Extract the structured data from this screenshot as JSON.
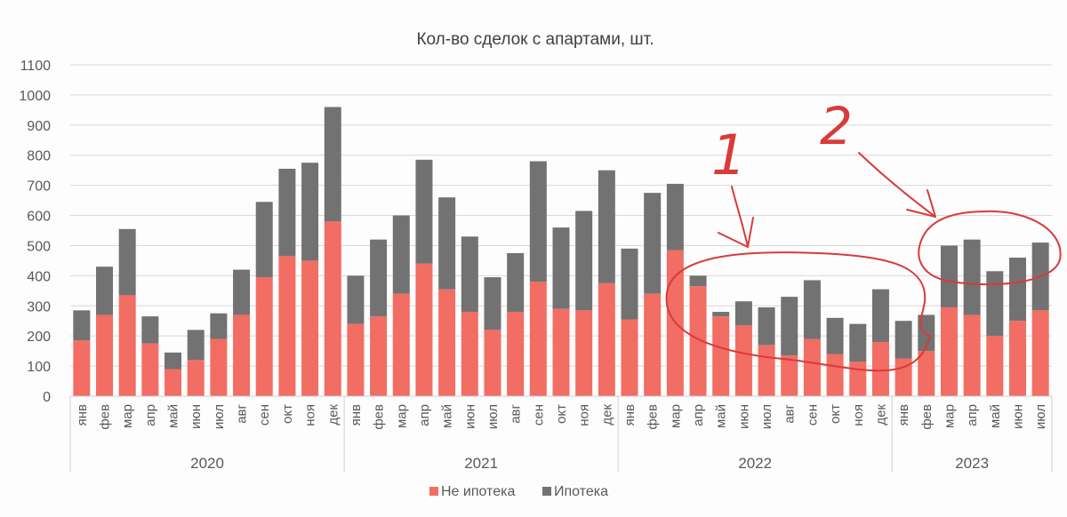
{
  "chart_data": {
    "type": "bar",
    "stacked": true,
    "title": "Кол-во сделок с апартами, шт.",
    "ylim": [
      0,
      1100
    ],
    "yticks": [
      0,
      100,
      200,
      300,
      400,
      500,
      600,
      700,
      800,
      900,
      1000,
      1100
    ],
    "grid": true,
    "legend_position": "bottom",
    "categories": [
      "янв",
      "фев",
      "мар",
      "апр",
      "май",
      "июн",
      "июл",
      "авг",
      "сен",
      "окт",
      "ноя",
      "дек",
      "янв",
      "фев",
      "мар",
      "апр",
      "май",
      "июн",
      "июл",
      "авг",
      "сен",
      "окт",
      "ноя",
      "дек",
      "янв",
      "фев",
      "мар",
      "апр",
      "май",
      "июн",
      "июл",
      "авг",
      "сен",
      "окт",
      "ноя",
      "дек",
      "янв",
      "фев",
      "мар",
      "апр",
      "май",
      "июн",
      "июл"
    ],
    "groups": [
      {
        "label": "2020",
        "count": 12
      },
      {
        "label": "2021",
        "count": 12
      },
      {
        "label": "2022",
        "count": 12
      },
      {
        "label": "2023",
        "count": 7
      }
    ],
    "series": [
      {
        "name": "Не ипотека",
        "color": "#f26d63",
        "values": [
          185,
          270,
          335,
          175,
          90,
          120,
          190,
          270,
          395,
          465,
          450,
          580,
          240,
          265,
          340,
          440,
          355,
          280,
          220,
          280,
          380,
          290,
          285,
          375,
          255,
          340,
          485,
          365,
          265,
          235,
          170,
          135,
          190,
          140,
          115,
          180,
          125,
          150,
          295,
          270,
          200,
          250,
          285
        ]
      },
      {
        "name": "Ипотека",
        "color": "#727272",
        "values": [
          100,
          160,
          220,
          90,
          55,
          100,
          85,
          150,
          250,
          290,
          325,
          380,
          160,
          255,
          260,
          345,
          305,
          250,
          175,
          195,
          400,
          270,
          330,
          375,
          235,
          335,
          220,
          35,
          15,
          80,
          125,
          195,
          195,
          120,
          125,
          175,
          125,
          120,
          205,
          250,
          215,
          210,
          225
        ]
      }
    ]
  },
  "annotations": [
    {
      "text": "1",
      "color": "#d93a3a"
    },
    {
      "text": "2",
      "color": "#d93a3a"
    }
  ]
}
